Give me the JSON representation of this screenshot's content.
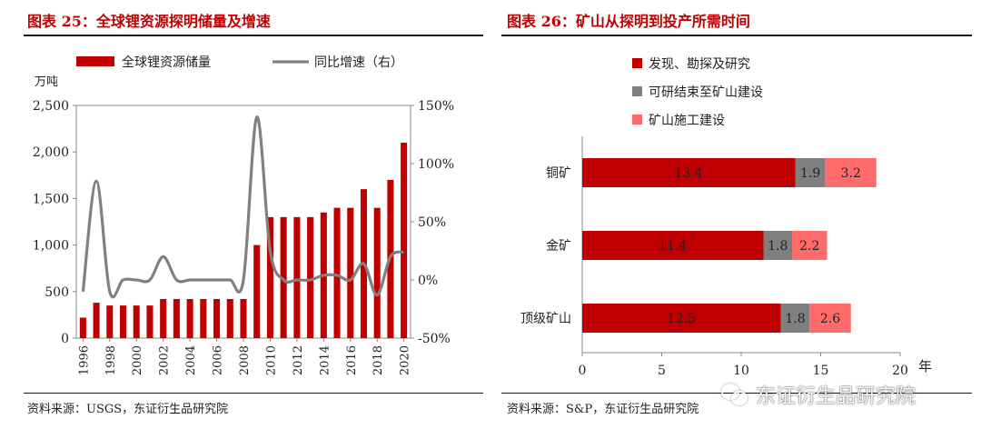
{
  "left_chart": {
    "title": "图表 25：全球锂资源探明储量及增速",
    "source": "资料来源：USGS，东证衍生品研究院",
    "chart_data": {
      "type": "bar+line",
      "ylabel_left": "万吨",
      "ylim_left": [
        0,
        2500
      ],
      "yticks_left": [
        "0",
        "500",
        "1,000",
        "1,500",
        "2,000",
        "2,500"
      ],
      "ylim_right": [
        -50,
        150
      ],
      "yticks_right": [
        "-50%",
        "0%",
        "50%",
        "100%",
        "150%"
      ],
      "x": [
        1996,
        1997,
        1998,
        1999,
        2000,
        2001,
        2002,
        2003,
        2004,
        2005,
        2006,
        2007,
        2008,
        2009,
        2010,
        2011,
        2012,
        2013,
        2014,
        2015,
        2016,
        2017,
        2018,
        2019,
        2020
      ],
      "xtick_labels": [
        "1996",
        "1998",
        "2000",
        "2002",
        "2004",
        "2006",
        "2008",
        "2010",
        "2012",
        "2014",
        "2016",
        "2018",
        "2020"
      ],
      "legend": [
        "全球锂资源储量",
        "同比增速（右）"
      ],
      "legend_position": "top",
      "series": [
        {
          "name": "全球锂资源储量",
          "type": "bar",
          "axis": "left",
          "color": "#c00000",
          "values": [
            220,
            380,
            350,
            350,
            350,
            350,
            420,
            420,
            420,
            420,
            420,
            420,
            420,
            1000,
            1300,
            1300,
            1300,
            1300,
            1350,
            1400,
            1400,
            1600,
            1400,
            1700,
            2100
          ]
        },
        {
          "name": "同比增速（右）",
          "type": "line",
          "axis": "right",
          "color": "#808080",
          "values": [
            -10,
            85,
            -10,
            0,
            0,
            0,
            20,
            0,
            0,
            0,
            0,
            0,
            0,
            140,
            25,
            0,
            0,
            0,
            4,
            4,
            0,
            14,
            -13,
            20,
            24
          ]
        }
      ]
    }
  },
  "right_chart": {
    "title": "图表 26：矿山从探明到投产所需时间",
    "source": "资料来源：S&P，东证衍生品研究院",
    "chart_data": {
      "type": "bar",
      "orientation": "horizontal",
      "stacked": true,
      "categories": [
        "铜矿",
        "金矿",
        "顶级矿山"
      ],
      "xlim": [
        0,
        20
      ],
      "xticks": [
        "0",
        "5",
        "10",
        "15",
        "20"
      ],
      "xunit": "年",
      "legend_position": "top",
      "series": [
        {
          "name": "发现、勘探及研究",
          "color": "#c00000",
          "values": [
            13.4,
            11.4,
            12.5
          ],
          "labels": [
            "13.4",
            "11.4",
            "12.5"
          ]
        },
        {
          "name": "可研结束至矿山建设",
          "color": "#7f7f7f",
          "values": [
            1.9,
            1.8,
            1.8
          ],
          "labels": [
            "1.9",
            "1.8",
            "1.8"
          ]
        },
        {
          "name": "矿山施工建设",
          "color": "#ff6b6b",
          "values": [
            3.2,
            2.2,
            2.6
          ],
          "labels": [
            "3.2",
            "2.2",
            "2.6"
          ]
        }
      ]
    }
  },
  "watermark": {
    "text": "东证衍生品研究院",
    "icon": "wechat-icon"
  }
}
